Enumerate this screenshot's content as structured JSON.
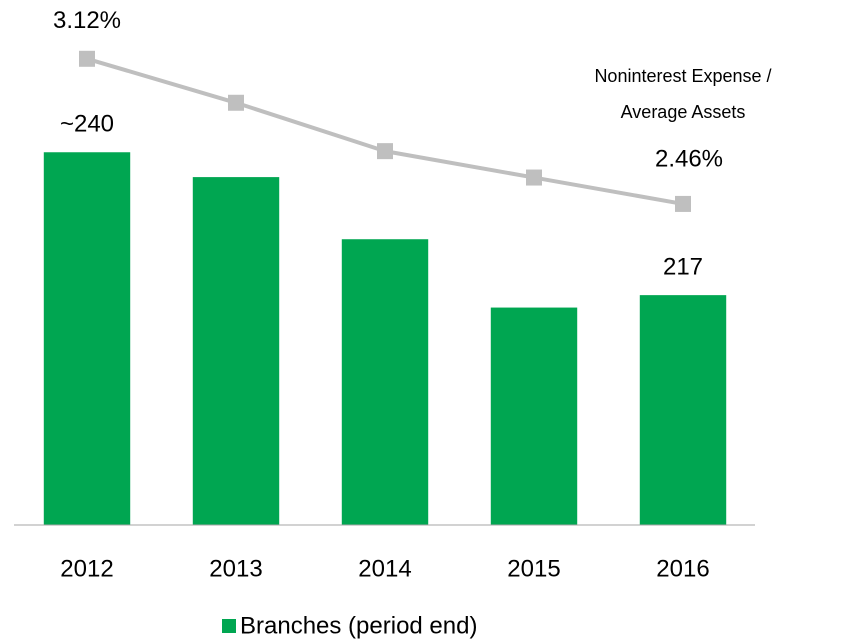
{
  "chart_data": {
    "type": "bar-line",
    "categories": [
      "2012",
      "2013",
      "2014",
      "2015",
      "2016"
    ],
    "series": [
      {
        "name": "Branches (period end)",
        "color": "#00a651",
        "type": "bar",
        "values": [
          240,
          236,
          226,
          215,
          217
        ],
        "value_labels": [
          "~240",
          null,
          null,
          null,
          "217"
        ]
      },
      {
        "color": "#bfbfbf",
        "type": "line",
        "axis": "y2",
        "values": [
          3.12,
          2.92,
          2.7,
          2.58,
          2.46
        ],
        "value_labels": [
          "3.12%",
          null,
          null,
          null,
          "2.46%"
        ]
      }
    ],
    "annotation": [
      "Noninterest Expense /",
      "Average Assets"
    ],
    "ylim": [
      180,
      260
    ],
    "y2lim": [
      1.0,
      3.26
    ],
    "legend": "bottom"
  }
}
